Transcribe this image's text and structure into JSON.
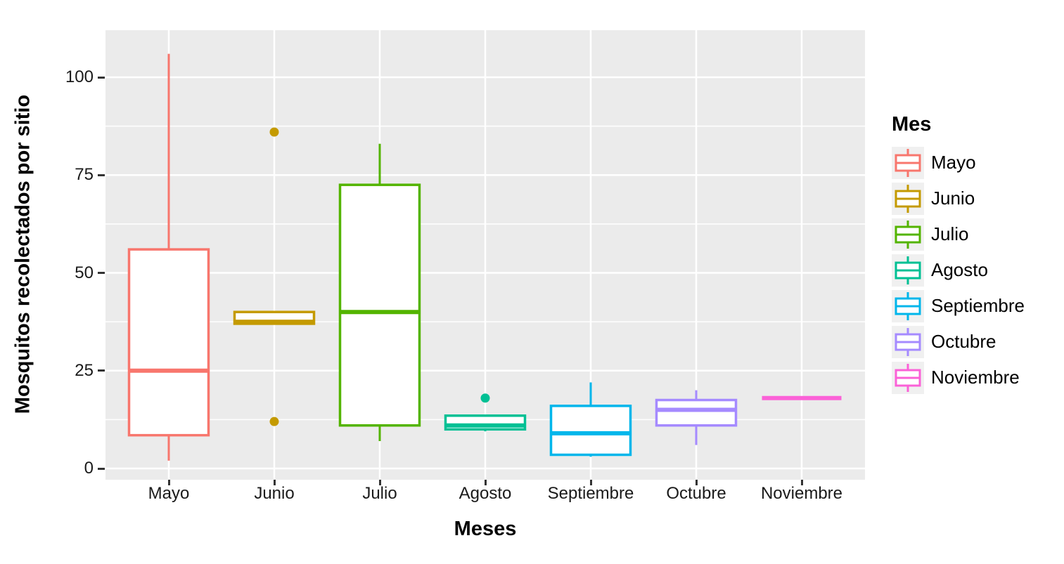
{
  "chart_data": {
    "type": "boxplot",
    "xlabel": "Meses",
    "ylabel": "Mosquitos recolectados por sitio",
    "legend_title": "Mes",
    "categories": [
      "Mayo",
      "Junio",
      "Julio",
      "Agosto",
      "Septiembre",
      "Octubre",
      "Noviembre"
    ],
    "yticks": [
      0,
      25,
      50,
      75,
      100
    ],
    "ytick_labels": [
      "0",
      "25",
      "50",
      "75",
      "100"
    ],
    "y_minor_gridlines": [
      12.5,
      37.5,
      62.5,
      87.5
    ],
    "ylim": [
      -3,
      112
    ],
    "grid": "on",
    "legend_position": "right",
    "panel_bg": "#EBEBEB",
    "grid_color": "#FFFFFF",
    "series": [
      {
        "name": "Mayo",
        "color": "#F8766D",
        "min": 2,
        "q1": 8.5,
        "median": 25,
        "q3": 56,
        "max": 106,
        "outliers": []
      },
      {
        "name": "Junio",
        "color": "#C49A00",
        "min": 37,
        "q1": 37,
        "median": 37.5,
        "q3": 40,
        "max": 40,
        "outliers": [
          86,
          12
        ]
      },
      {
        "name": "Julio",
        "color": "#53B400",
        "min": 7,
        "q1": 11,
        "median": 40,
        "q3": 72.5,
        "max": 83,
        "outliers": []
      },
      {
        "name": "Agosto",
        "color": "#00C094",
        "min": 9.5,
        "q1": 10,
        "median": 11,
        "q3": 13.5,
        "max": 13.5,
        "outliers": [
          18
        ]
      },
      {
        "name": "Septiembre",
        "color": "#00B6EB",
        "min": 3,
        "q1": 3.5,
        "median": 9,
        "q3": 16,
        "max": 22,
        "outliers": []
      },
      {
        "name": "Octubre",
        "color": "#A58AFF",
        "min": 6,
        "q1": 11,
        "median": 15,
        "q3": 17.5,
        "max": 20,
        "outliers": []
      },
      {
        "name": "Noviembre",
        "color": "#FB61D7",
        "min": 18,
        "q1": 18,
        "median": 18,
        "q3": 18,
        "max": 18,
        "outliers": []
      }
    ]
  }
}
